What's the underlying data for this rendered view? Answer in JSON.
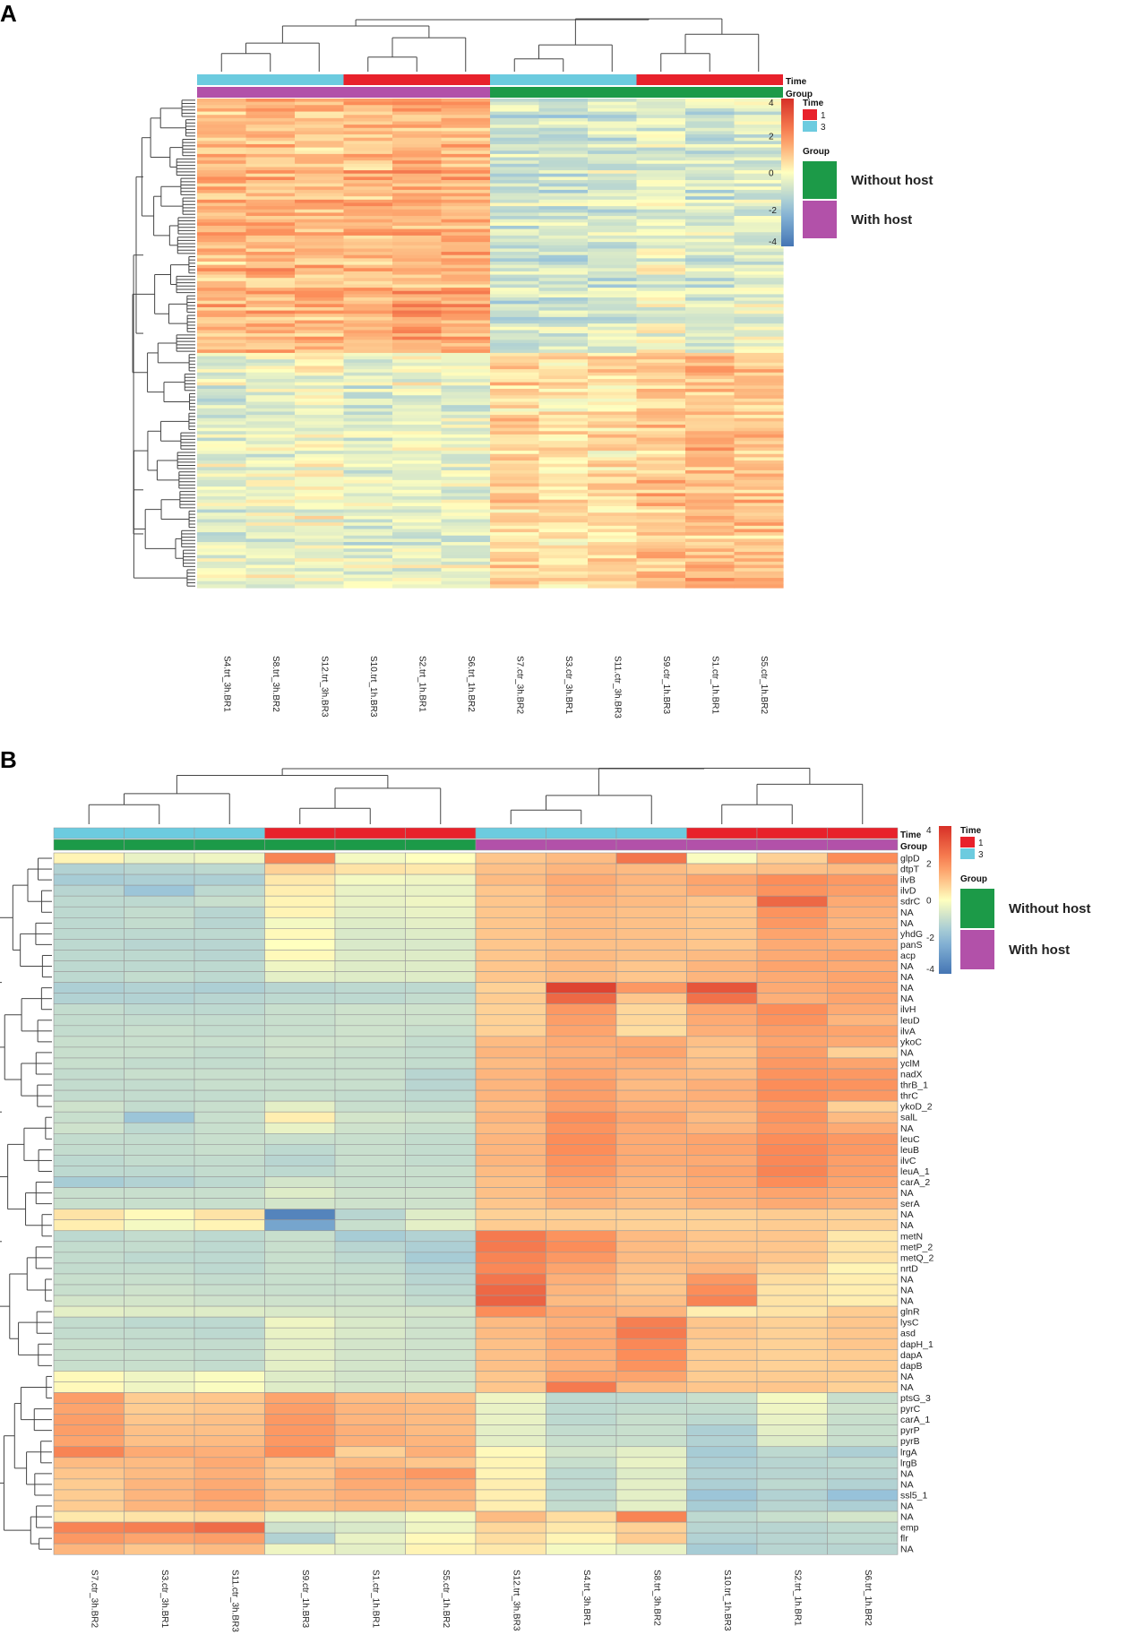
{
  "chart_data": [
    {
      "panel": "A",
      "type": "heatmap",
      "title": "",
      "annotation_labels": [
        "Time",
        "Group"
      ],
      "columns": [
        "S4.trt_3h.BR1",
        "S8.trt_3h.BR2",
        "S12.trt_3h.BR3",
        "S10.trt_1h.BR3",
        "S2.trt_1h.BR1",
        "S6.trt_1h.BR2",
        "S7.ctr_3h.BR2",
        "S3.ctr_3h.BR1",
        "S11.ctr_3h.BR3",
        "S9.ctr_1h.BR3",
        "S1.ctr_1h.BR1",
        "S5.ctr_1h.BR2"
      ],
      "time": [
        3,
        3,
        3,
        1,
        1,
        1,
        3,
        3,
        3,
        1,
        1,
        1
      ],
      "group": [
        "With host",
        "With host",
        "With host",
        "With host",
        "With host",
        "With host",
        "Without host",
        "Without host",
        "Without host",
        "Without host",
        "Without host",
        "Without host"
      ],
      "row_count": 150,
      "row_blocks": [
        {
          "rows": 78,
          "means": [
            1.2,
            1.3,
            1.2,
            1.3,
            1.5,
            1.4,
            -0.8,
            -0.9,
            -0.8,
            -0.3,
            -0.7,
            -0.6
          ]
        },
        {
          "rows": 72,
          "means": [
            -0.5,
            -0.3,
            -0.1,
            -0.5,
            -0.3,
            -0.4,
            0.8,
            0.6,
            0.6,
            1.1,
            1.2,
            1.1
          ]
        }
      ],
      "scale": {
        "min": -4,
        "max": 4,
        "ticks": [
          4,
          2,
          0,
          -2,
          -4
        ]
      }
    },
    {
      "panel": "B",
      "type": "heatmap",
      "title": "",
      "annotation_labels": [
        "Time",
        "Group"
      ],
      "columns": [
        "S7.ctr_3h.BR2",
        "S3.ctr_3h.BR1",
        "S11.ctr_3h.BR3",
        "S9.ctr_1h.BR3",
        "S1.ctr_1h.BR1",
        "S5.ctr_1h.BR2",
        "S12.trt_3h.BR3",
        "S4.trt_3h.BR1",
        "S8.trt_3h.BR2",
        "S10.trt_1h.BR3",
        "S2.trt_1h.BR1",
        "S6.trt_1h.BR2"
      ],
      "time": [
        3,
        3,
        3,
        1,
        1,
        1,
        3,
        3,
        3,
        1,
        1,
        1
      ],
      "group": [
        "Without host",
        "Without host",
        "Without host",
        "Without host",
        "Without host",
        "Without host",
        "With host",
        "With host",
        "With host",
        "With host",
        "With host",
        "With host"
      ],
      "genes": [
        "glpD",
        "dtpT",
        "ilvB",
        "ilvD",
        "sdrC",
        "NA",
        "NA",
        "yhdG",
        "panS",
        "acp",
        "NA",
        "NA",
        "NA",
        "NA",
        "ilvH",
        "leuD",
        "ilvA",
        "ykoC",
        "NA",
        "yclM",
        "nadX",
        "thrB_1",
        "thrC",
        "ykoD_2",
        "salL",
        "NA",
        "leuC",
        "leuB",
        "ilvC",
        "leuA_1",
        "carA_2",
        "NA",
        "serA",
        "NA",
        "NA",
        "metN",
        "metP_2",
        "metQ_2",
        "nrtD",
        "NA",
        "NA",
        "NA",
        "glnR",
        "lysC",
        "asd",
        "dapH_1",
        "dapA",
        "dapB",
        "NA",
        "NA",
        "ptsG_3",
        "pyrC",
        "carA_1",
        "pyrP",
        "pyrB",
        "lrgA",
        "lrgB",
        "NA",
        "NA",
        "ssl5_1",
        "NA",
        "NA",
        "emp",
        "flr",
        "NA"
      ],
      "values": [
        [
          0.2,
          -0.4,
          -0.3,
          2.2,
          -0.2,
          0.0,
          1.0,
          1.2,
          2.5,
          -0.1,
          0.8,
          2.0
        ],
        [
          -1.4,
          -1.3,
          -1.2,
          0.8,
          0.5,
          0.4,
          1.1,
          1.3,
          1.2,
          1.0,
          1.1,
          1.2
        ],
        [
          -1.6,
          -1.5,
          -1.5,
          0.4,
          -0.2,
          -0.3,
          1.2,
          1.5,
          1.3,
          1.6,
          2.0,
          1.8
        ],
        [
          -1.3,
          -1.8,
          -1.2,
          0.3,
          -0.4,
          -0.4,
          1.0,
          1.4,
          1.2,
          1.5,
          1.9,
          1.7
        ],
        [
          -1.2,
          -1.2,
          -1.0,
          0.2,
          -0.4,
          -0.3,
          1.0,
          1.3,
          1.2,
          1.0,
          2.8,
          1.5
        ],
        [
          -1.2,
          -1.1,
          -1.3,
          0.2,
          -0.5,
          -0.4,
          1.0,
          1.2,
          1.1,
          1.0,
          1.9,
          1.4
        ],
        [
          -1.2,
          -1.1,
          -1.3,
          -0.2,
          -0.6,
          -0.5,
          1.0,
          1.2,
          1.1,
          1.0,
          1.8,
          1.3
        ],
        [
          -1.2,
          -1.2,
          -1.2,
          0.1,
          -0.7,
          -0.6,
          1.0,
          1.2,
          1.1,
          1.0,
          1.6,
          1.4
        ],
        [
          -1.2,
          -1.3,
          -1.3,
          0.0,
          -0.7,
          -0.7,
          1.0,
          1.1,
          1.1,
          1.0,
          1.5,
          1.4
        ],
        [
          -1.2,
          -1.2,
          -1.3,
          0.1,
          -0.6,
          -0.6,
          1.0,
          1.2,
          1.1,
          1.2,
          1.5,
          1.6
        ],
        [
          -1.2,
          -1.2,
          -1.2,
          -0.3,
          -0.6,
          -0.6,
          1.0,
          1.2,
          1.0,
          1.3,
          1.6,
          1.5
        ],
        [
          -1.2,
          -1.1,
          -1.2,
          -0.5,
          -0.6,
          -0.6,
          1.0,
          1.2,
          1.0,
          1.3,
          1.5,
          1.6
        ],
        [
          -1.5,
          -1.4,
          -1.5,
          -1.3,
          -1.2,
          -1.2,
          0.8,
          3.6,
          1.8,
          3.2,
          1.5,
          1.6
        ],
        [
          -1.4,
          -1.4,
          -1.3,
          -1.2,
          -1.2,
          -1.1,
          0.9,
          2.8,
          1.0,
          2.6,
          1.4,
          1.6
        ],
        [
          -1.1,
          -1.2,
          -1.2,
          -1.0,
          -0.9,
          -0.9,
          0.8,
          1.8,
          0.7,
          1.6,
          2.0,
          1.5
        ],
        [
          -1.1,
          -1.1,
          -1.1,
          -1.0,
          -0.9,
          -0.9,
          0.8,
          1.7,
          0.7,
          1.5,
          1.9,
          1.3
        ],
        [
          -1.1,
          -1.0,
          -1.1,
          -1.0,
          -0.9,
          -1.0,
          0.8,
          1.6,
          0.6,
          1.4,
          1.7,
          1.6
        ],
        [
          -1.0,
          -1.0,
          -1.0,
          -0.9,
          -0.9,
          -1.1,
          1.2,
          1.5,
          1.5,
          1.1,
          1.6,
          1.5
        ],
        [
          -1.0,
          -1.0,
          -1.1,
          -0.9,
          -1.0,
          -1.1,
          1.3,
          1.4,
          1.6,
          1.0,
          1.7,
          0.8
        ],
        [
          -1.0,
          -1.1,
          -1.1,
          -1.0,
          -1.0,
          -1.1,
          1.2,
          1.5,
          1.4,
          1.1,
          1.8,
          1.6
        ],
        [
          -1.1,
          -1.0,
          -1.0,
          -1.0,
          -1.0,
          -1.3,
          1.3,
          1.6,
          1.3,
          1.2,
          1.9,
          1.8
        ],
        [
          -1.1,
          -1.1,
          -1.0,
          -1.0,
          -1.0,
          -1.3,
          1.3,
          1.7,
          1.2,
          1.4,
          2.0,
          1.9
        ],
        [
          -1.1,
          -1.1,
          -1.1,
          -1.0,
          -1.1,
          -1.2,
          1.3,
          1.7,
          1.3,
          1.4,
          2.0,
          1.8
        ],
        [
          -0.9,
          -1.1,
          -1.0,
          -0.5,
          -1.0,
          -1.1,
          1.2,
          1.7,
          1.4,
          1.3,
          1.8,
          0.8
        ],
        [
          -1.0,
          -1.8,
          -1.0,
          0.3,
          -0.8,
          -0.9,
          1.3,
          2.0,
          1.6,
          1.2,
          1.9,
          1.2
        ],
        [
          -0.9,
          -1.2,
          -1.0,
          -0.4,
          -0.9,
          -1.0,
          1.2,
          1.9,
          1.5,
          1.3,
          1.8,
          1.5
        ],
        [
          -1.1,
          -1.1,
          -1.0,
          -1.0,
          -1.0,
          -1.1,
          1.3,
          2.0,
          1.5,
          1.6,
          2.0,
          1.8
        ],
        [
          -1.1,
          -1.1,
          -1.0,
          -1.2,
          -1.0,
          -1.1,
          1.3,
          2.0,
          1.5,
          1.6,
          2.1,
          1.8
        ],
        [
          -1.2,
          -1.1,
          -1.1,
          -1.3,
          -1.0,
          -1.1,
          1.3,
          1.9,
          1.5,
          1.5,
          2.1,
          1.7
        ],
        [
          -1.2,
          -1.2,
          -1.1,
          -1.2,
          -1.0,
          -1.0,
          1.2,
          1.8,
          1.4,
          1.6,
          2.2,
          1.7
        ],
        [
          -1.6,
          -1.4,
          -1.2,
          -0.8,
          -1.0,
          -1.0,
          1.1,
          1.6,
          1.3,
          1.5,
          2.0,
          1.6
        ],
        [
          -1.0,
          -1.0,
          -1.0,
          -0.6,
          -0.9,
          -0.9,
          1.1,
          1.4,
          1.2,
          1.4,
          1.6,
          1.4
        ],
        [
          -1.0,
          -1.0,
          -1.0,
          -0.8,
          -0.9,
          -0.9,
          1.0,
          1.3,
          1.1,
          1.3,
          1.5,
          1.3
        ],
        [
          0.5,
          0.1,
          0.5,
          -3.6,
          -1.3,
          -0.6,
          0.8,
          0.8,
          0.8,
          0.8,
          0.9,
          0.8
        ],
        [
          0.3,
          -0.2,
          0.2,
          -2.7,
          -1.0,
          -0.5,
          0.9,
          0.9,
          0.8,
          0.8,
          0.9,
          0.8
        ],
        [
          -1.2,
          -1.1,
          -1.2,
          -1.0,
          -1.6,
          -1.4,
          2.4,
          1.9,
          1.2,
          1.0,
          1.0,
          0.4
        ],
        [
          -1.1,
          -1.1,
          -1.2,
          -1.0,
          -1.3,
          -1.5,
          2.4,
          2.0,
          1.2,
          1.0,
          1.0,
          0.5
        ],
        [
          -1.1,
          -1.2,
          -1.2,
          -1.0,
          -1.2,
          -1.6,
          2.2,
          1.8,
          1.2,
          1.2,
          1.0,
          0.5
        ],
        [
          -1.1,
          -1.1,
          -1.2,
          -1.0,
          -1.1,
          -1.4,
          2.1,
          1.6,
          1.1,
          1.3,
          0.8,
          0.2
        ],
        [
          -1.0,
          -1.0,
          -1.1,
          -1.0,
          -1.0,
          -1.3,
          2.5,
          1.4,
          1.0,
          1.8,
          0.6,
          0.3
        ],
        [
          -1.0,
          -0.9,
          -1.0,
          -1.0,
          -1.0,
          -1.2,
          2.8,
          1.3,
          1.0,
          2.0,
          0.5,
          0.3
        ],
        [
          -0.8,
          -0.8,
          -0.9,
          -0.9,
          -0.9,
          -1.1,
          2.9,
          1.2,
          1.1,
          2.2,
          0.5,
          0.3
        ],
        [
          -0.5,
          -0.6,
          -0.6,
          -0.7,
          -0.8,
          -0.8,
          2.0,
          1.5,
          1.3,
          0.3,
          0.5,
          0.9
        ],
        [
          -1.1,
          -1.2,
          -1.2,
          -0.3,
          -0.7,
          -0.9,
          1.2,
          1.4,
          2.3,
          1.0,
          0.8,
          1.0
        ],
        [
          -1.1,
          -1.1,
          -1.2,
          -0.4,
          -0.7,
          -0.9,
          1.2,
          1.5,
          2.4,
          1.0,
          0.8,
          1.0
        ],
        [
          -1.0,
          -1.1,
          -1.1,
          -0.5,
          -0.8,
          -0.9,
          1.1,
          1.5,
          2.1,
          0.9,
          0.8,
          1.0
        ],
        [
          -1.0,
          -1.0,
          -1.1,
          -0.5,
          -0.8,
          -0.9,
          1.1,
          1.4,
          2.0,
          0.9,
          0.8,
          0.9
        ],
        [
          -1.0,
          -1.0,
          -1.1,
          -0.5,
          -0.8,
          -0.9,
          1.1,
          1.4,
          1.9,
          0.9,
          0.8,
          0.9
        ],
        [
          0.1,
          -0.3,
          -0.1,
          -0.6,
          -0.8,
          -0.8,
          1.0,
          1.6,
          1.6,
          0.9,
          0.9,
          0.9
        ],
        [
          0.1,
          -0.3,
          -0.1,
          -0.6,
          -0.8,
          -0.8,
          1.0,
          2.4,
          1.2,
          1.0,
          1.0,
          0.8
        ],
        [
          1.7,
          0.9,
          1.0,
          1.6,
          1.2,
          1.1,
          -0.3,
          -1.2,
          -1.2,
          -1.0,
          -0.2,
          -1.0
        ],
        [
          1.6,
          0.9,
          1.0,
          1.7,
          1.3,
          1.2,
          -0.4,
          -1.2,
          -1.1,
          -1.1,
          -0.3,
          -0.9
        ],
        [
          1.7,
          1.0,
          1.1,
          1.8,
          1.3,
          1.2,
          -0.4,
          -1.2,
          -1.0,
          -1.2,
          -0.4,
          -1.0
        ],
        [
          1.7,
          1.1,
          1.1,
          1.8,
          1.4,
          1.2,
          -0.5,
          -1.1,
          -1.0,
          -1.5,
          -0.5,
          -1.0
        ],
        [
          1.6,
          1.1,
          1.2,
          1.8,
          1.4,
          1.3,
          -0.5,
          -1.0,
          -1.0,
          -1.4,
          -0.6,
          -1.0
        ],
        [
          2.2,
          1.5,
          1.4,
          2.0,
          0.8,
          1.4,
          0.1,
          -0.8,
          -0.5,
          -1.6,
          -1.2,
          -1.5
        ],
        [
          1.2,
          1.2,
          1.5,
          1.0,
          1.2,
          1.0,
          0.2,
          -1.0,
          -0.4,
          -1.5,
          -1.3,
          -1.2
        ],
        [
          1.0,
          1.2,
          1.4,
          1.0,
          1.6,
          1.8,
          0.2,
          -1.2,
          -0.6,
          -1.4,
          -1.3,
          -1.3
        ],
        [
          0.9,
          1.3,
          1.5,
          1.1,
          1.5,
          1.5,
          0.3,
          -1.2,
          -0.5,
          -1.5,
          -1.2,
          -1.4
        ],
        [
          0.9,
          1.3,
          1.6,
          1.2,
          1.4,
          1.3,
          0.3,
          -1.2,
          -0.5,
          -1.8,
          -1.4,
          -1.9
        ],
        [
          0.9,
          1.3,
          1.5,
          1.2,
          1.3,
          1.2,
          0.3,
          -1.1,
          -0.5,
          -1.6,
          -1.3,
          -1.5
        ],
        [
          0.4,
          0.5,
          0.6,
          -0.4,
          -0.5,
          -0.2,
          1.2,
          0.6,
          2.2,
          -1.2,
          -1.0,
          -0.8
        ],
        [
          2.2,
          2.3,
          2.7,
          -0.9,
          -0.7,
          -0.3,
          0.7,
          0.4,
          0.8,
          -1.3,
          -1.3,
          -1.2
        ],
        [
          1.8,
          1.6,
          1.7,
          -1.4,
          -0.4,
          0.1,
          0.6,
          0.2,
          0.9,
          -1.4,
          -1.3,
          -1.2
        ],
        [
          1.3,
          1.0,
          1.2,
          -0.3,
          -0.5,
          0.2,
          0.4,
          -0.2,
          -0.4,
          -1.6,
          -1.3,
          -1.3
        ]
      ],
      "scale": {
        "min": -4,
        "max": 4,
        "ticks": [
          4,
          2,
          0,
          -2,
          -4
        ]
      }
    }
  ],
  "legend": {
    "time_title": "Time",
    "time_levels": [
      {
        "label": "1",
        "color": "#e8212b"
      },
      {
        "label": "3",
        "color": "#6ccbdf"
      }
    ],
    "group_title": "Group",
    "group_levels": [
      {
        "label": "Without host",
        "color": "#1c9a48"
      },
      {
        "label": "With host",
        "color": "#b251a9"
      }
    ],
    "scale_ticks_a": [
      "4",
      "2",
      "0",
      "-2",
      "-4"
    ],
    "scale_ticks_b": [
      "4",
      "2",
      "0",
      "-2",
      "-4"
    ]
  },
  "panel_labels": {
    "a": "A",
    "b": "B"
  },
  "colors": {
    "scale_low": "#4575b4",
    "scale_mid": "#ffffbf",
    "scale_high": "#d73027",
    "time_1": "#e8212b",
    "time_3": "#6ccbdf",
    "group_without": "#1c9a48",
    "group_with": "#b251a9"
  }
}
